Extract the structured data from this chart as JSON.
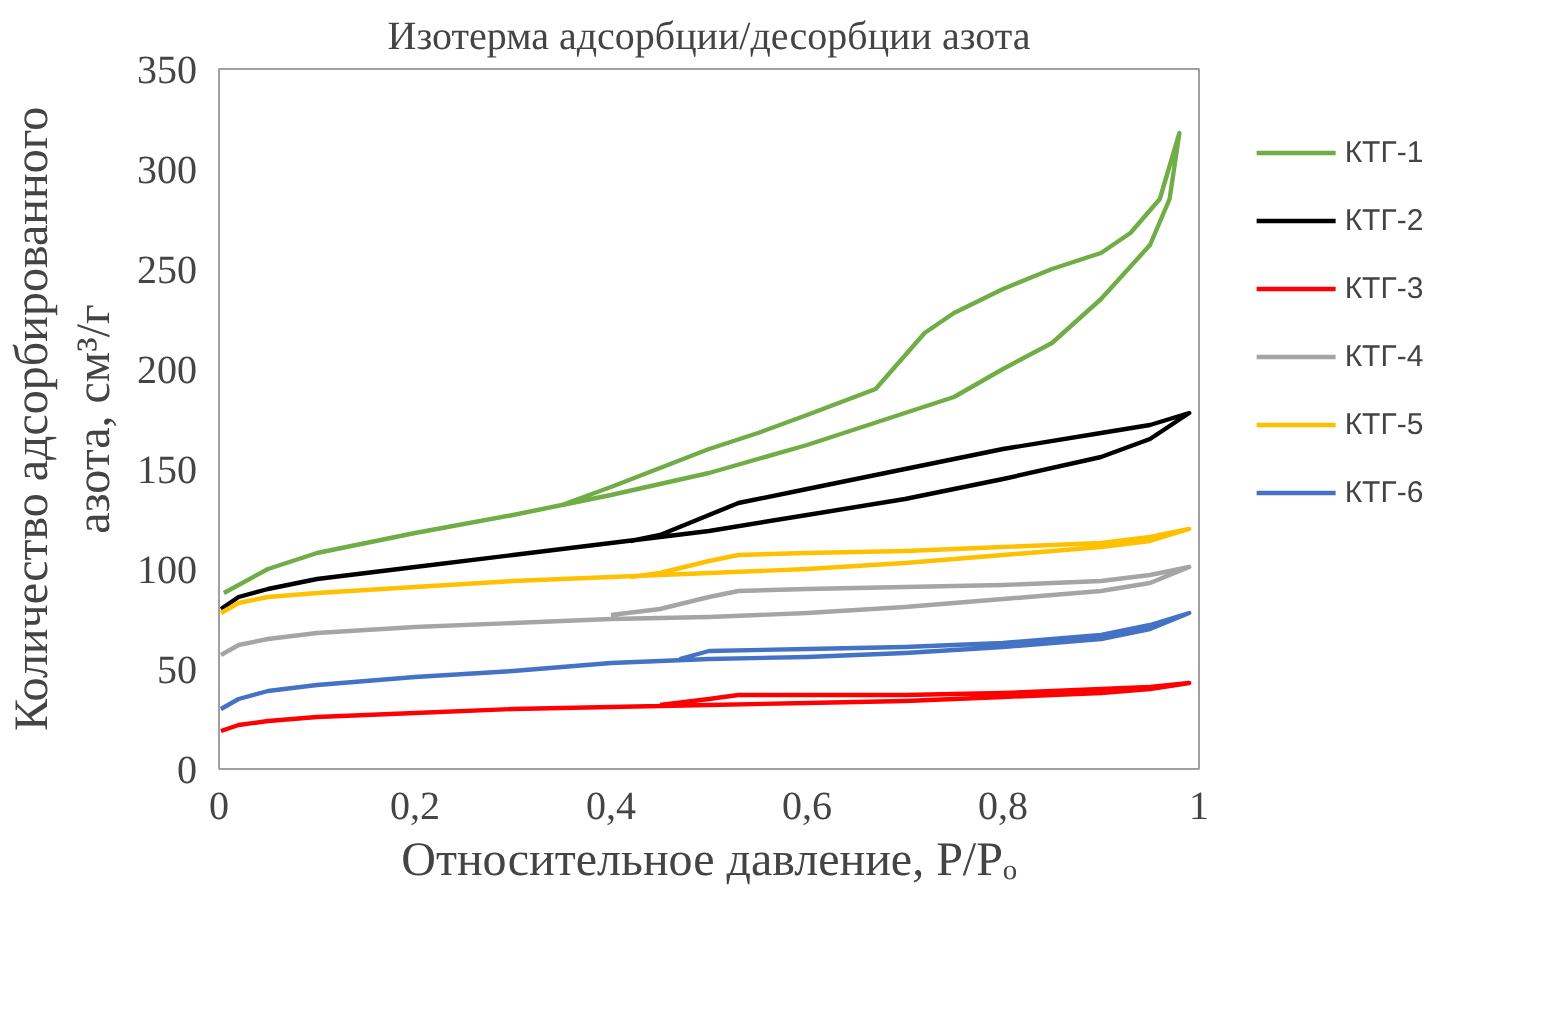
{
  "chart_data": {
    "type": "line",
    "title": "Изотерма адсорбции/десорбции азота",
    "xlabel": "Относительное давление, P/Pₒ",
    "ylabel": "Количество адсорбированного азота, см³/г",
    "xlim": [
      0,
      1
    ],
    "ylim": [
      0,
      350
    ],
    "xticks": [
      0,
      {
        "value": 0.2,
        "label": "0,2"
      },
      {
        "value": 0.4,
        "label": "0,4"
      },
      {
        "value": 0.6,
        "label": "0,6"
      },
      {
        "value": 0.8,
        "label": "0,8"
      },
      1
    ],
    "yticks": [
      0,
      50,
      100,
      150,
      200,
      250,
      300,
      350
    ],
    "grid": false,
    "legend": "right",
    "marker": "none",
    "line_style": "solid",
    "series": [
      {
        "name": "КТГ-1",
        "color": "#70ad47",
        "x": [
          0.005,
          0.05,
          0.1,
          0.2,
          0.3,
          0.35,
          0.4,
          0.5,
          0.6,
          0.7,
          0.75,
          0.8,
          0.85,
          0.9,
          0.95,
          0.97,
          0.98,
          0.96,
          0.93,
          0.9,
          0.85,
          0.8,
          0.75,
          0.72,
          0.67,
          0.6,
          0.55,
          0.5,
          0.4,
          0.35
        ],
        "values": [
          88,
          100,
          108,
          118,
          127,
          132,
          137,
          148,
          162,
          178,
          186,
          200,
          213,
          235,
          262,
          285,
          318,
          285,
          268,
          258,
          250,
          240,
          228,
          218,
          190,
          177,
          168,
          160,
          141,
          132
        ]
      },
      {
        "name": "КТГ-2",
        "color": "#000000",
        "x": [
          0.002,
          0.02,
          0.05,
          0.1,
          0.2,
          0.3,
          0.4,
          0.5,
          0.6,
          0.7,
          0.8,
          0.9,
          0.95,
          0.99,
          0.95,
          0.9,
          0.8,
          0.7,
          0.6,
          0.53,
          0.5,
          0.45,
          0.42
        ],
        "values": [
          80,
          86,
          90,
          95,
          101,
          107,
          113,
          119,
          127,
          135,
          145,
          156,
          165,
          178,
          172,
          168,
          160,
          150,
          140,
          133,
          127,
          117,
          114
        ]
      },
      {
        "name": "КТГ-3",
        "color": "#ff0000",
        "x": [
          0.002,
          0.02,
          0.05,
          0.1,
          0.2,
          0.3,
          0.4,
          0.5,
          0.6,
          0.7,
          0.8,
          0.9,
          0.95,
          0.99,
          0.95,
          0.9,
          0.8,
          0.7,
          0.6,
          0.53,
          0.5,
          0.45
        ],
        "values": [
          19,
          22,
          24,
          26,
          28,
          30,
          31,
          32,
          33,
          34,
          36,
          38,
          40,
          43,
          41,
          40,
          38,
          37,
          37,
          37,
          35,
          32
        ]
      },
      {
        "name": "КТГ-4",
        "color": "#a5a5a5",
        "x": [
          0.002,
          0.02,
          0.05,
          0.1,
          0.2,
          0.3,
          0.4,
          0.5,
          0.6,
          0.7,
          0.8,
          0.9,
          0.95,
          0.99,
          0.95,
          0.9,
          0.8,
          0.7,
          0.6,
          0.53,
          0.5,
          0.45,
          0.4
        ],
        "values": [
          57,
          62,
          65,
          68,
          71,
          73,
          75,
          76,
          78,
          81,
          85,
          89,
          93,
          101,
          97,
          94,
          92,
          91,
          90,
          89,
          86,
          80,
          77
        ]
      },
      {
        "name": "КТГ-5",
        "color": "#ffc000",
        "x": [
          0.002,
          0.02,
          0.05,
          0.1,
          0.2,
          0.3,
          0.4,
          0.5,
          0.6,
          0.7,
          0.8,
          0.9,
          0.95,
          0.99,
          0.95,
          0.9,
          0.8,
          0.7,
          0.6,
          0.53,
          0.5,
          0.45,
          0.42
        ],
        "values": [
          78,
          83,
          86,
          88,
          91,
          94,
          96,
          98,
          100,
          103,
          107,
          111,
          114,
          120,
          116,
          113,
          111,
          109,
          108,
          107,
          104,
          98,
          96
        ]
      },
      {
        "name": "КТГ-6",
        "color": "#4472c4",
        "x": [
          0.002,
          0.02,
          0.05,
          0.1,
          0.2,
          0.3,
          0.4,
          0.5,
          0.6,
          0.7,
          0.8,
          0.9,
          0.95,
          0.99,
          0.95,
          0.9,
          0.8,
          0.7,
          0.6,
          0.5,
          0.47
        ],
        "values": [
          30,
          35,
          39,
          42,
          46,
          49,
          53,
          55,
          56,
          58,
          61,
          65,
          70,
          78,
          72,
          67,
          63,
          61,
          60,
          59,
          55
        ]
      }
    ]
  }
}
